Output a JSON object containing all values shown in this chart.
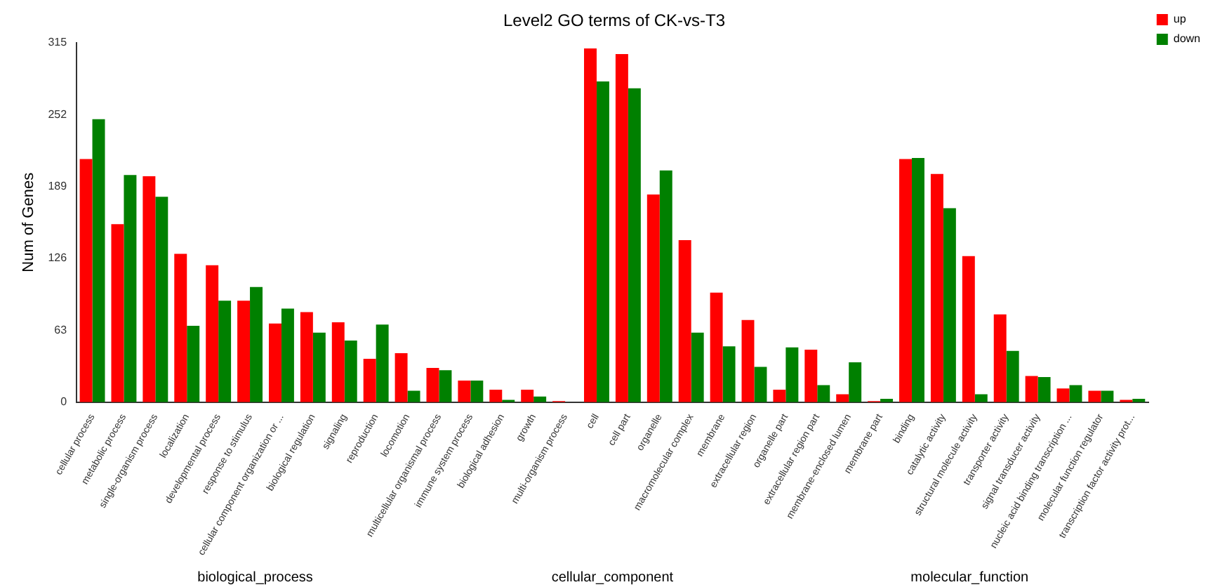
{
  "chart_data": {
    "type": "bar",
    "title": "Level2 GO terms of CK-vs-T3",
    "ylabel": "Num of Genes",
    "categories": [
      "cellular process",
      "metabolic process",
      "single-organism process",
      "localization",
      "developmental process",
      "response to stimulus",
      "cellular component organization or ...",
      "biological regulation",
      "signaling",
      "reproduction",
      "locomotion",
      "multicellular organismal process",
      "immune system process",
      "biological adhesion",
      "growth",
      "multi-organism process",
      "cell",
      "cell part",
      "organelle",
      "macromolecular complex",
      "membrane",
      "extracellular region",
      "organelle part",
      "extracellular region part",
      "membrane-enclosed lumen",
      "membrane part",
      "binding",
      "catalytic activity",
      "structural molecule activity",
      "transporter activity",
      "signal transducer activity",
      "nucleic acid binding transcription ...",
      "molecular function regulator",
      "transcription factor activity prot..."
    ],
    "series": [
      {
        "name": "up",
        "color": "#ff0000",
        "values": [
          213,
          156,
          198,
          130,
          120,
          89,
          69,
          79,
          70,
          38,
          43,
          30,
          19,
          11,
          11,
          1,
          310,
          305,
          182,
          142,
          96,
          72,
          11,
          46,
          7,
          1,
          213,
          200,
          128,
          77,
          23,
          12,
          10,
          2
        ]
      },
      {
        "name": "down",
        "color": "#008000",
        "values": [
          248,
          199,
          180,
          67,
          89,
          101,
          82,
          61,
          54,
          68,
          10,
          28,
          19,
          2,
          5,
          0,
          281,
          275,
          203,
          61,
          49,
          31,
          48,
          15,
          35,
          3,
          214,
          170,
          7,
          45,
          22,
          15,
          10,
          3
        ]
      }
    ],
    "ylim": [
      0,
      315
    ],
    "yticks": [
      0,
      63,
      126,
      189,
      252,
      315
    ],
    "legend": "top right",
    "annotations": [
      "biological_process",
      "cellular_component",
      "molecular_function"
    ]
  }
}
